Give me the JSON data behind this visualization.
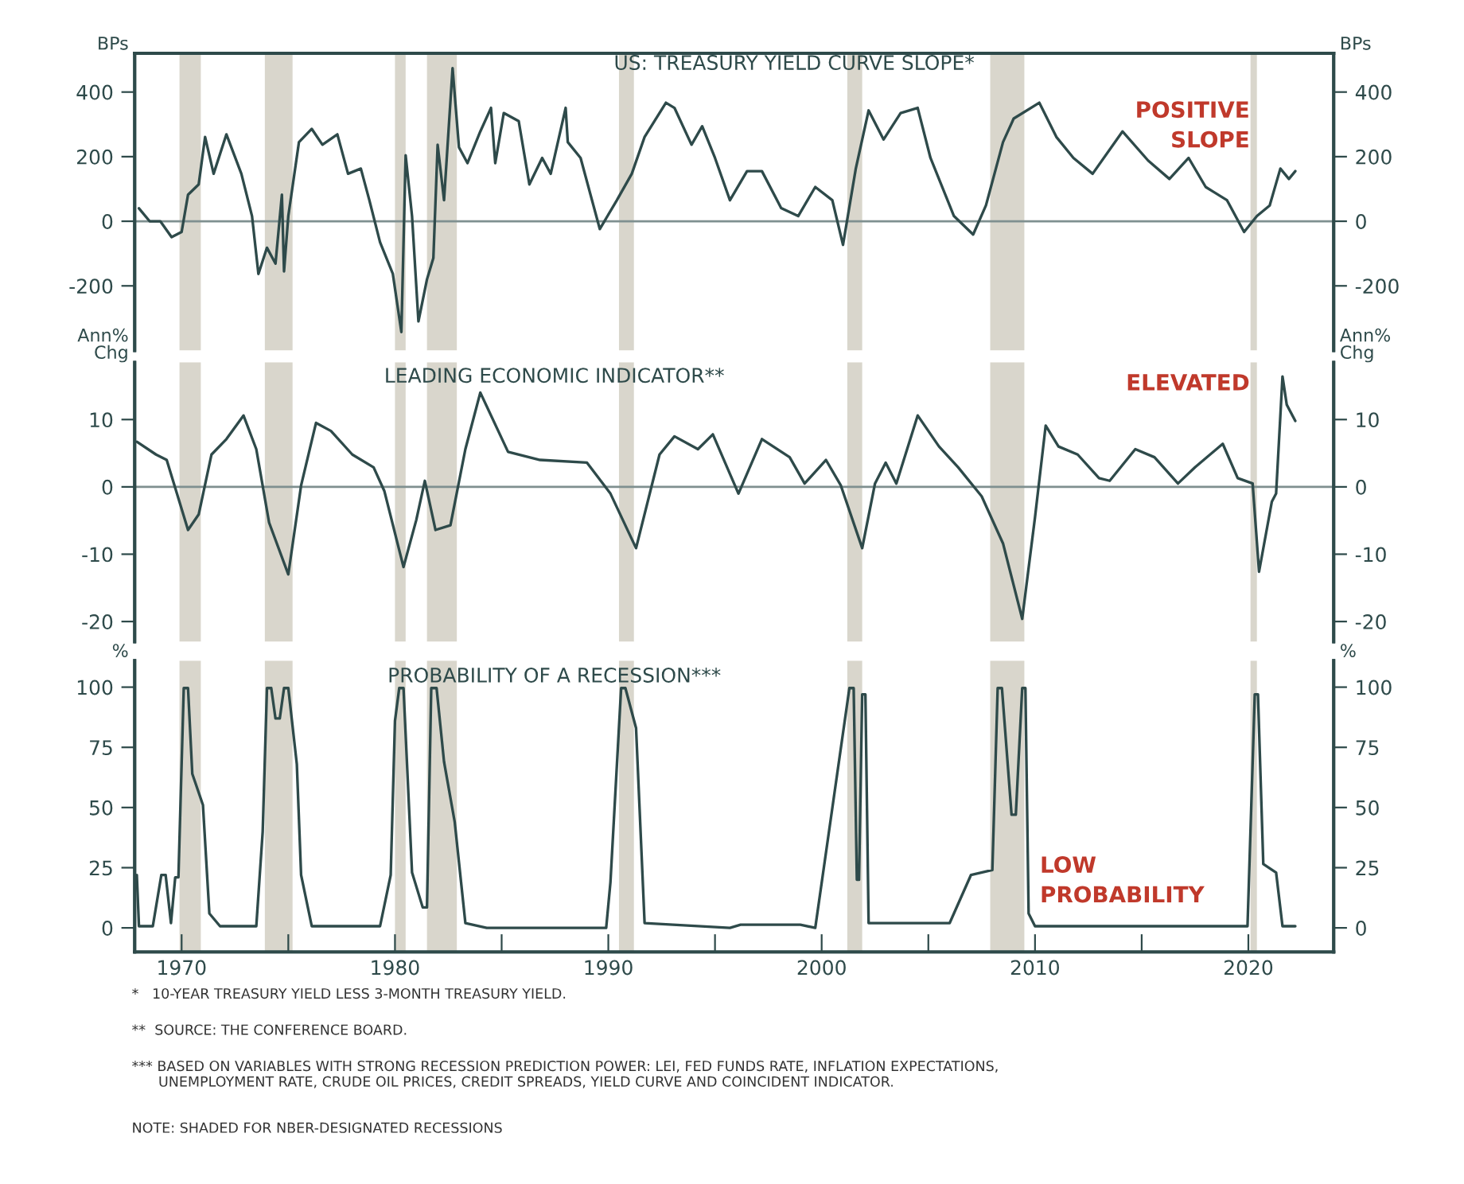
{
  "chart_data": [
    {
      "type": "line",
      "title": "US: TREASURY YIELD CURVE SLOPE*",
      "ylabel": "BPs",
      "y2label": "BPs",
      "xlim": [
        1967.8,
        2024
      ],
      "ylim": [
        -400,
        520
      ],
      "yticks": [
        -200,
        0,
        200,
        400
      ],
      "y2lim": [
        -400,
        520
      ],
      "y2ticks": [
        -200,
        0,
        200,
        400
      ],
      "tick_labels": "y",
      "grid": false,
      "legend": false,
      "marker": "none",
      "line_style": "solid",
      "series": [
        {
          "color": "#2e4a4a",
          "x": [
            1968.0,
            1968.5,
            1969.0,
            1969.53,
            1970.0,
            1970.3,
            1970.8,
            1971.1,
            1971.5,
            1972.1,
            1972.8,
            1973.3,
            1973.6,
            1974.0,
            1974.4,
            1974.7,
            1974.8,
            1975.0,
            1975.5,
            1976.1,
            1976.6,
            1977.3,
            1977.8,
            1978.4,
            1978.8,
            1979.3,
            1979.9,
            1980.3,
            1980.5,
            1980.8,
            1981.1,
            1981.5,
            1981.8,
            1982.0,
            1982.3,
            1982.7,
            1983.0,
            1983.4,
            1984.0,
            1984.5,
            1984.7,
            1985.1,
            1985.8,
            1986.3,
            1986.9,
            1987.3,
            1988.0,
            1988.1,
            1988.7,
            1989.6,
            1990.4,
            1991.1,
            1991.7,
            1992.7,
            1993.1,
            1993.9,
            1994.4,
            1995.0,
            1995.7,
            1996.5,
            1997.2,
            1998.1,
            1998.9,
            1999.7,
            2000.5,
            2001.0,
            2001.6,
            2002.2,
            2002.9,
            2003.7,
            2004.5,
            2005.1,
            2006.2,
            2007.1,
            2007.7,
            2008.5,
            2009.0,
            2010.2,
            2011.0,
            2011.8,
            2012.7,
            2014.1,
            2015.3,
            2016.3,
            2017.2,
            2018.0,
            2019.0,
            2019.8,
            2020.4,
            2021.0,
            2021.5,
            2021.9,
            2022.2
          ],
          "values": [
            40,
            0,
            0,
            -49,
            -33,
            82,
            114,
            261,
            147,
            269,
            147,
            16,
            -163,
            -82,
            -131,
            82,
            -155,
            16,
            245,
            286,
            237,
            269,
            147,
            163,
            65,
            -65,
            -163,
            -343,
            204,
            16,
            -310,
            -180,
            -114,
            237,
            65,
            474,
            229,
            180,
            278,
            351,
            180,
            335,
            310,
            114,
            196,
            147,
            351,
            245,
            196,
            -24,
            65,
            147,
            261,
            367,
            351,
            237,
            294,
            196,
            65,
            155,
            155,
            41,
            16,
            106,
            65,
            -73,
            163,
            343,
            253,
            335,
            351,
            196,
            16,
            -41,
            49,
            245,
            318,
            367,
            261,
            196,
            147,
            278,
            188,
            131,
            196,
            106,
            65,
            -33,
            16,
            49,
            163,
            131,
            155
          ]
        }
      ],
      "ref_lines": [
        {
          "axis": "y",
          "value": 0,
          "color": "#7f9090"
        }
      ],
      "bands": [
        {
          "axis": "x",
          "from": 1969.9,
          "to": 1970.9,
          "color": "#d9d6cc"
        },
        {
          "axis": "x",
          "from": 1973.9,
          "to": 1975.2,
          "color": "#d9d6cc"
        },
        {
          "axis": "x",
          "from": 1980.0,
          "to": 1980.5,
          "color": "#d9d6cc"
        },
        {
          "axis": "x",
          "from": 1981.5,
          "to": 1982.9,
          "color": "#d9d6cc"
        },
        {
          "axis": "x",
          "from": 1990.5,
          "to": 1991.2,
          "color": "#d9d6cc"
        },
        {
          "axis": "x",
          "from": 2001.2,
          "to": 2001.9,
          "color": "#d9d6cc"
        },
        {
          "axis": "x",
          "from": 2007.9,
          "to": 2009.5,
          "color": "#d9d6cc"
        },
        {
          "axis": "x",
          "from": 2020.1,
          "to": 2020.4,
          "color": "#d9d6cc"
        }
      ],
      "annotations": [
        "POSITIVE\nSLOPE"
      ]
    },
    {
      "type": "line",
      "title": "LEADING ECONOMIC INDICATOR**",
      "ylabel": "Ann%\nChg",
      "y2label": "Ann%\nChg",
      "xlim": [
        1967.8,
        2024
      ],
      "ylim": [
        -23,
        18.5
      ],
      "yticks": [
        -20,
        -10,
        0,
        10
      ],
      "y2lim": [
        -23,
        18.5
      ],
      "y2ticks": [
        -20,
        -10,
        0,
        10
      ],
      "tick_labels": "y",
      "grid": false,
      "legend": false,
      "marker": "none",
      "line_style": "solid",
      "series": [
        {
          "color": "#2e4a4a",
          "x": [
            1967.9,
            1968.8,
            1969.3,
            1970.3,
            1970.8,
            1971.4,
            1972.1,
            1972.9,
            1973.5,
            1974.1,
            1975.0,
            1975.6,
            1976.3,
            1977.0,
            1978.0,
            1979.0,
            1979.5,
            1980.4,
            1981.0,
            1981.4,
            1981.9,
            1982.6,
            1983.3,
            1984.0,
            1985.3,
            1986.8,
            1989.0,
            1990.1,
            1991.3,
            1992.4,
            1993.1,
            1994.2,
            1994.9,
            1996.1,
            1997.2,
            1998.5,
            1999.2,
            2000.2,
            2000.9,
            2001.9,
            2002.5,
            2003.0,
            2003.5,
            2004.5,
            2005.5,
            2006.4,
            2007.5,
            2008.5,
            2009.4,
            2010.0,
            2010.5,
            2011.1,
            2012.0,
            2013.0,
            2013.5,
            2014.7,
            2015.6,
            2016.7,
            2017.5,
            2018.8,
            2019.5,
            2020.2,
            2020.5,
            2021.1,
            2021.3,
            2021.6,
            2021.8,
            2022.2
          ],
          "values": [
            6.7,
            4.8,
            4.0,
            -6.4,
            -4.1,
            4.8,
            7.1,
            10.6,
            5.6,
            -5.3,
            -13.0,
            0.2,
            9.5,
            8.3,
            4.8,
            2.9,
            -0.6,
            -11.9,
            -4.9,
            0.9,
            -6.4,
            -5.7,
            5.6,
            14.0,
            5.2,
            4.0,
            3.6,
            -1.0,
            -9.1,
            4.8,
            7.5,
            5.6,
            7.8,
            -1.0,
            7.1,
            4.4,
            0.5,
            4.0,
            0.2,
            -9.1,
            0.5,
            3.6,
            0.5,
            10.6,
            6.0,
            2.9,
            -1.4,
            -8.4,
            -19.6,
            -4.5,
            9.1,
            6.0,
            4.8,
            1.3,
            0.9,
            5.6,
            4.4,
            0.5,
            2.9,
            6.4,
            1.3,
            0.5,
            -12.6,
            -2.2,
            -1.0,
            16.4,
            12.2,
            9.8
          ]
        }
      ],
      "ref_lines": [
        {
          "axis": "y",
          "value": 0,
          "color": "#7f9090"
        }
      ],
      "bands": [
        {
          "axis": "x",
          "from": 1969.9,
          "to": 1970.9,
          "color": "#d9d6cc"
        },
        {
          "axis": "x",
          "from": 1973.9,
          "to": 1975.2,
          "color": "#d9d6cc"
        },
        {
          "axis": "x",
          "from": 1980.0,
          "to": 1980.5,
          "color": "#d9d6cc"
        },
        {
          "axis": "x",
          "from": 1981.5,
          "to": 1982.9,
          "color": "#d9d6cc"
        },
        {
          "axis": "x",
          "from": 1990.5,
          "to": 1991.2,
          "color": "#d9d6cc"
        },
        {
          "axis": "x",
          "from": 2001.2,
          "to": 2001.9,
          "color": "#d9d6cc"
        },
        {
          "axis": "x",
          "from": 2007.9,
          "to": 2009.5,
          "color": "#d9d6cc"
        },
        {
          "axis": "x",
          "from": 2020.1,
          "to": 2020.4,
          "color": "#d9d6cc"
        }
      ],
      "annotations": [
        "ELEVATED"
      ]
    },
    {
      "type": "line",
      "title": "PROBABILITY OF A RECESSION***",
      "ylabel": "%",
      "y2label": "%",
      "xlim": [
        1967.8,
        2024
      ],
      "xticks": [
        1970,
        {
          "value": 1975,
          "label": null
        },
        1980,
        {
          "value": 1985,
          "label": null
        },
        1990,
        {
          "value": 1995,
          "label": null
        },
        2000,
        {
          "value": 2005,
          "label": null
        },
        2010,
        {
          "value": 2015,
          "label": null
        },
        2020
      ],
      "ylim": [
        -10,
        111
      ],
      "yticks": [
        0,
        25,
        50,
        75,
        100
      ],
      "y2lim": [
        -10,
        111
      ],
      "y2ticks": [
        0,
        25,
        50,
        75,
        100
      ],
      "grid": false,
      "legend": false,
      "marker": "none",
      "line_style": "solid",
      "series": [
        {
          "color": "#2e4a4a",
          "x": [
            1967.9,
            1968.0,
            1968.65,
            1969.05,
            1969.25,
            1969.5,
            1969.7,
            1969.85,
            1970.1,
            1970.3,
            1970.5,
            1971.0,
            1971.3,
            1971.8,
            1973.5,
            1973.8,
            1974.0,
            1974.2,
            1974.4,
            1974.6,
            1974.8,
            1975.0,
            1975.4,
            1975.6,
            1976.1,
            1979.3,
            1979.8,
            1980.0,
            1980.2,
            1980.4,
            1980.8,
            1981.3,
            1981.5,
            1981.7,
            1981.95,
            1982.3,
            1982.8,
            1983.3,
            1984.3,
            1989.9,
            1990.1,
            1990.6,
            1990.8,
            1991.3,
            1991.7,
            1995.7,
            1996.2,
            1999.0,
            1999.7,
            2001.3,
            2001.5,
            2001.65,
            2001.75,
            2001.9,
            2002.05,
            2002.2,
            2006.0,
            2007.0,
            2008.0,
            2008.25,
            2008.45,
            2008.9,
            2009.1,
            2009.4,
            2009.55,
            2009.7,
            2010.0,
            2019.96,
            2020.3,
            2020.45,
            2020.7,
            2021.3,
            2021.6,
            2022.2
          ],
          "values": [
            22,
            0.7,
            0.7,
            22,
            22,
            2,
            21,
            21,
            99.6,
            99.6,
            64,
            51,
            6,
            0.7,
            0.7,
            40,
            99.6,
            99.6,
            87,
            87,
            99.6,
            99.6,
            68,
            22,
            0.7,
            0.7,
            22,
            86,
            99.6,
            99.6,
            23,
            8.5,
            8.5,
            99.6,
            99.6,
            69,
            44,
            2,
            0,
            0,
            19,
            99.6,
            99.6,
            83,
            2,
            0,
            1.3,
            1.3,
            0,
            99.6,
            99.6,
            20,
            20,
            97,
            97,
            2,
            2,
            22,
            24,
            99.6,
            99.6,
            47,
            47,
            99.6,
            99.6,
            6,
            0.7,
            0.7,
            97,
            97,
            26.5,
            23,
            0.7,
            0.7
          ]
        }
      ],
      "bands": [
        {
          "axis": "x",
          "from": 1969.9,
          "to": 1970.9,
          "color": "#d9d6cc"
        },
        {
          "axis": "x",
          "from": 1973.9,
          "to": 1975.2,
          "color": "#d9d6cc"
        },
        {
          "axis": "x",
          "from": 1980.0,
          "to": 1980.5,
          "color": "#d9d6cc"
        },
        {
          "axis": "x",
          "from": 1981.5,
          "to": 1982.9,
          "color": "#d9d6cc"
        },
        {
          "axis": "x",
          "from": 1990.5,
          "to": 1991.2,
          "color": "#d9d6cc"
        },
        {
          "axis": "x",
          "from": 2001.2,
          "to": 2001.9,
          "color": "#d9d6cc"
        },
        {
          "axis": "x",
          "from": 2007.9,
          "to": 2009.5,
          "color": "#d9d6cc"
        },
        {
          "axis": "x",
          "from": 2020.1,
          "to": 2020.4,
          "color": "#d9d6cc"
        }
      ],
      "annotations": [
        "LOW\nPROBABILITY"
      ]
    },
    {
      "type": "other",
      "annotations": [
        "*   10-YEAR TREASURY YIELD LESS 3-MONTH TREASURY YIELD.",
        "**  SOURCE: THE CONFERENCE BOARD.",
        "*** BASED ON VARIABLES WITH STRONG RECESSION PREDICTION POWER: LEI, FED FUNDS RATE, INFLATION EXPECTATIONS,\n      UNEMPLOYMENT RATE, CRUDE OIL PRICES, CREDIT SPREADS, YIELD CURVE AND COINCIDENT INDICATOR.",
        "NOTE: SHADED FOR NBER-DESIGNATED RECESSIONS"
      ]
    }
  ]
}
